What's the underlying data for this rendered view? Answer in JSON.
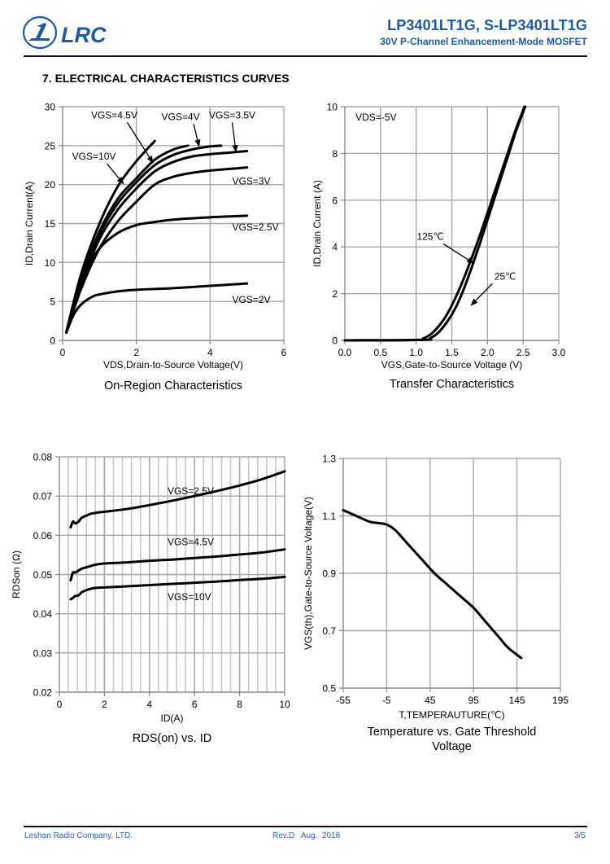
{
  "header": {
    "logo_text": "LRC",
    "part_numbers": "LP3401LT1G, S-LP3401LT1G",
    "subtitle": "30V P-Channel Enhancement-Mode MOSFET",
    "brand_color": "#1a5aa6"
  },
  "section_title": "7. ELECTRICAL CHARACTERISTICS CURVES",
  "footer": {
    "company": "Leshan Radio Company, LTD.",
    "revision": "Rev.D   Aug.  2018",
    "page": "3/5",
    "color": "#2a62a8"
  },
  "chart_data": [
    {
      "id": "on-region",
      "type": "line",
      "title": "On-Region Characteristics",
      "xlabel": "VDS,Drain-to-Source Voltage(V)",
      "ylabel": "ID,Drain Current(A)",
      "xlim": [
        0,
        6
      ],
      "ylim": [
        0,
        30
      ],
      "xticks": [
        0,
        2,
        4,
        6
      ],
      "yticks": [
        0,
        5,
        10,
        15,
        20,
        25,
        30
      ],
      "xgrid": [
        2,
        4,
        6
      ],
      "ygrid": [
        5,
        10,
        15,
        20,
        25,
        30
      ],
      "grid": true,
      "series": [
        {
          "name": "VGS=10V",
          "x": [
            0.1,
            0.5,
            1.0,
            1.5,
            2.0,
            2.5
          ],
          "y": [
            1.0,
            8.5,
            15.0,
            19.8,
            23.0,
            25.6
          ]
        },
        {
          "name": "VGS=4.5V",
          "x": [
            0.1,
            0.5,
            1.0,
            1.5,
            2.0,
            2.5,
            3.0,
            3.4
          ],
          "y": [
            1.0,
            7.8,
            14.0,
            18.2,
            20.8,
            23.2,
            24.5,
            25.0
          ]
        },
        {
          "name": "VGS=4V",
          "x": [
            0.1,
            0.5,
            1.0,
            1.5,
            2.0,
            2.5,
            3.0,
            3.5,
            4.0,
            4.3
          ],
          "y": [
            1.0,
            7.5,
            13.6,
            17.6,
            20.3,
            22.5,
            23.8,
            24.5,
            24.9,
            25.0
          ]
        },
        {
          "name": "VGS=3.5V",
          "x": [
            0.1,
            0.5,
            1.0,
            1.5,
            2.0,
            2.5,
            3.0,
            3.5,
            4.0,
            4.5,
            5.0
          ],
          "y": [
            1.0,
            7.2,
            13.0,
            16.8,
            19.5,
            21.7,
            22.9,
            23.6,
            23.9,
            24.1,
            24.3
          ]
        },
        {
          "name": "VGS=3V",
          "x": [
            0.1,
            0.5,
            1.0,
            1.5,
            2.0,
            2.5,
            3.0,
            3.5,
            4.0,
            4.5,
            5.0
          ],
          "y": [
            1.0,
            6.6,
            11.8,
            15.3,
            17.8,
            20.0,
            21.0,
            21.5,
            21.8,
            22.0,
            22.2
          ]
        },
        {
          "name": "VGS=2.5V",
          "x": [
            0.1,
            0.3,
            0.6,
            1.0,
            1.5,
            2.0,
            2.5,
            3.0,
            4.0,
            5.0
          ],
          "y": [
            1.0,
            4.8,
            8.6,
            11.8,
            13.8,
            14.8,
            15.2,
            15.5,
            15.8,
            16.0
          ]
        },
        {
          "name": "VGS=2V",
          "x": [
            0.1,
            0.3,
            0.5,
            0.8,
            1.0,
            1.5,
            2.0,
            3.0,
            4.0,
            5.0
          ],
          "y": [
            1.0,
            3.3,
            4.6,
            5.6,
            5.9,
            6.3,
            6.5,
            6.7,
            7.0,
            7.3
          ]
        }
      ],
      "annotations": [
        {
          "text": "VGS=4.5V",
          "at": [
            1.4,
            28.5
          ],
          "arrow_to": [
            2.45,
            22.8
          ]
        },
        {
          "text": "VGS=4V",
          "at": [
            3.2,
            28.3
          ],
          "arrow_to": [
            3.7,
            24.9
          ]
        },
        {
          "text": "VGS=3.5V",
          "at": [
            4.6,
            28.5
          ],
          "arrow_to": [
            4.7,
            24.2
          ]
        },
        {
          "text": "VGS=10V",
          "at": [
            0.85,
            23.2
          ],
          "arrow_to": [
            1.65,
            20.1
          ]
        },
        {
          "text": "VGS=3V",
          "at": [
            4.6,
            20.0
          ],
          "arrow_to": null
        },
        {
          "text": "VGS=2.5V",
          "at": [
            4.6,
            14.1
          ],
          "arrow_to": null
        },
        {
          "text": "VGS=2V",
          "at": [
            4.6,
            4.8
          ],
          "arrow_to": null
        }
      ]
    },
    {
      "id": "transfer",
      "type": "line",
      "title": "Transfer Characteristics",
      "xlabel": "VGS,Gate-to-Source Voltage (V)",
      "ylabel": "ID,Drain Current (A)",
      "xlim": [
        0,
        3
      ],
      "ylim": [
        0,
        10
      ],
      "xticks": [
        "0.0",
        "0.5",
        "1.0",
        "1.5",
        "2.0",
        "2.5",
        "3.0"
      ],
      "yticks": [
        0,
        2,
        4,
        6,
        8,
        10
      ],
      "xgrid": [
        0.5,
        1.0,
        1.5,
        2.0,
        2.5,
        3.0
      ],
      "ygrid": [
        2,
        4,
        6,
        8,
        10
      ],
      "grid": true,
      "series": [
        {
          "name": "125℃",
          "x": [
            0,
            1.0,
            1.1,
            1.2,
            1.3,
            1.4,
            1.5,
            1.6,
            1.7,
            1.8,
            1.9,
            2.0,
            2.1,
            2.2,
            2.3,
            2.4,
            2.52
          ],
          "y": [
            0,
            0.02,
            0.08,
            0.25,
            0.55,
            0.95,
            1.5,
            2.15,
            2.9,
            3.7,
            4.55,
            5.45,
            6.35,
            7.25,
            8.15,
            9.05,
            10.0
          ]
        },
        {
          "name": "25℃",
          "x": [
            0,
            1.1,
            1.2,
            1.3,
            1.4,
            1.5,
            1.6,
            1.7,
            1.8,
            1.9,
            2.0,
            2.1,
            2.2,
            2.3,
            2.4,
            2.53
          ],
          "y": [
            0,
            0.02,
            0.1,
            0.3,
            0.65,
            1.1,
            1.7,
            2.45,
            3.3,
            4.2,
            5.15,
            6.1,
            7.05,
            8.0,
            8.95,
            10.0
          ]
        }
      ],
      "annotations": [
        {
          "text": "VDS=-5V",
          "at": [
            0.15,
            9.4
          ],
          "arrow_to": null
        },
        {
          "text": "125℃",
          "at": [
            1.2,
            4.3
          ],
          "arrow_to": [
            1.81,
            3.3
          ]
        },
        {
          "text": "25℃",
          "at": [
            2.25,
            2.6
          ],
          "arrow_to": [
            1.77,
            1.5
          ]
        }
      ]
    },
    {
      "id": "rdson-vs-id",
      "type": "line",
      "title": "RDS(on) vs.  ID",
      "xlabel": "ID(A)",
      "ylabel": "RDSon (Ω)",
      "xlim": [
        0,
        10
      ],
      "ylim": [
        0.02,
        0.08
      ],
      "xticks": [
        0,
        2,
        4,
        6,
        8,
        10
      ],
      "yticks": [
        "0.02",
        "0.03",
        "0.04",
        "0.05",
        "0.06",
        "0.07",
        "0.08"
      ],
      "xgrid_major": [
        2,
        4,
        6,
        8,
        10
      ],
      "xgrid_minor_step": 0.4,
      "ygrid": [
        0.03,
        0.04,
        0.05,
        0.06,
        0.07,
        0.08
      ],
      "grid": true,
      "series": [
        {
          "name": "VGS=2.5V",
          "x": [
            0.5,
            0.6,
            0.7,
            0.85,
            1.0,
            1.2,
            1.4,
            1.7,
            2.0,
            3.0,
            4.0,
            5.0,
            6.0,
            7.0,
            8.0,
            9.0,
            10.0
          ],
          "y": [
            0.062,
            0.0635,
            0.063,
            0.0635,
            0.0645,
            0.065,
            0.0655,
            0.0658,
            0.066,
            0.0667,
            0.0677,
            0.0688,
            0.07,
            0.0713,
            0.0727,
            0.0743,
            0.0763
          ]
        },
        {
          "name": "VGS=4.5V",
          "x": [
            0.5,
            0.6,
            0.7,
            0.85,
            1.0,
            1.3,
            1.6,
            2.0,
            3.0,
            4.0,
            5.0,
            6.0,
            7.0,
            8.0,
            9.0,
            10.0
          ],
          "y": [
            0.0485,
            0.0505,
            0.0505,
            0.051,
            0.0515,
            0.052,
            0.0525,
            0.0528,
            0.0531,
            0.0535,
            0.0538,
            0.0542,
            0.0546,
            0.0551,
            0.0556,
            0.0564
          ]
        },
        {
          "name": "VGS=10V",
          "x": [
            0.5,
            0.6,
            0.7,
            0.85,
            1.0,
            1.2,
            1.5,
            2.0,
            3.0,
            4.0,
            5.0,
            6.0,
            7.0,
            8.0,
            9.0,
            10.0
          ],
          "y": [
            0.0437,
            0.044,
            0.0445,
            0.0447,
            0.0455,
            0.046,
            0.0465,
            0.0467,
            0.047,
            0.0473,
            0.0476,
            0.0479,
            0.0482,
            0.0486,
            0.0489,
            0.0494
          ]
        }
      ],
      "annotations": [
        {
          "text": "VGS=2.5V",
          "at": [
            4.8,
            0.0705
          ],
          "arrow_to": null
        },
        {
          "text": "VGS=4.5V",
          "at": [
            4.8,
            0.0575
          ],
          "arrow_to": null
        },
        {
          "text": "VGS=10V",
          "at": [
            4.8,
            0.0435
          ],
          "arrow_to": null
        }
      ]
    },
    {
      "id": "vth-vs-temp",
      "type": "line",
      "title": "Temperature vs. Gate Threshold Voltage",
      "title_lines": [
        "Temperature vs. Gate Threshold",
        "Voltage"
      ],
      "xlabel": "T,TEMPERAUTURE(℃)",
      "ylabel": "VGS(th),Gate-to-Source Voltage(V)",
      "xlim": [
        -55,
        195
      ],
      "ylim": [
        0.5,
        1.3
      ],
      "xticks": [
        -55,
        -5,
        45,
        95,
        145,
        195
      ],
      "yticks": [
        "0.5",
        "0.7",
        "0.9",
        "1.1",
        "1.3"
      ],
      "xgrid": [
        -5,
        45,
        95,
        145,
        195
      ],
      "ygrid": [
        0.7,
        0.9,
        1.1,
        1.3
      ],
      "grid": true,
      "series": [
        {
          "name": "VGS(th)",
          "x": [
            -55,
            -40,
            -25,
            -15,
            -5,
            5,
            20,
            35,
            50,
            65,
            80,
            95,
            105,
            115,
            125,
            135,
            150
          ],
          "y": [
            1.12,
            1.1,
            1.08,
            1.075,
            1.07,
            1.05,
            1.0,
            0.95,
            0.9,
            0.86,
            0.82,
            0.78,
            0.745,
            0.71,
            0.675,
            0.64,
            0.605
          ]
        }
      ],
      "annotations": []
    }
  ]
}
